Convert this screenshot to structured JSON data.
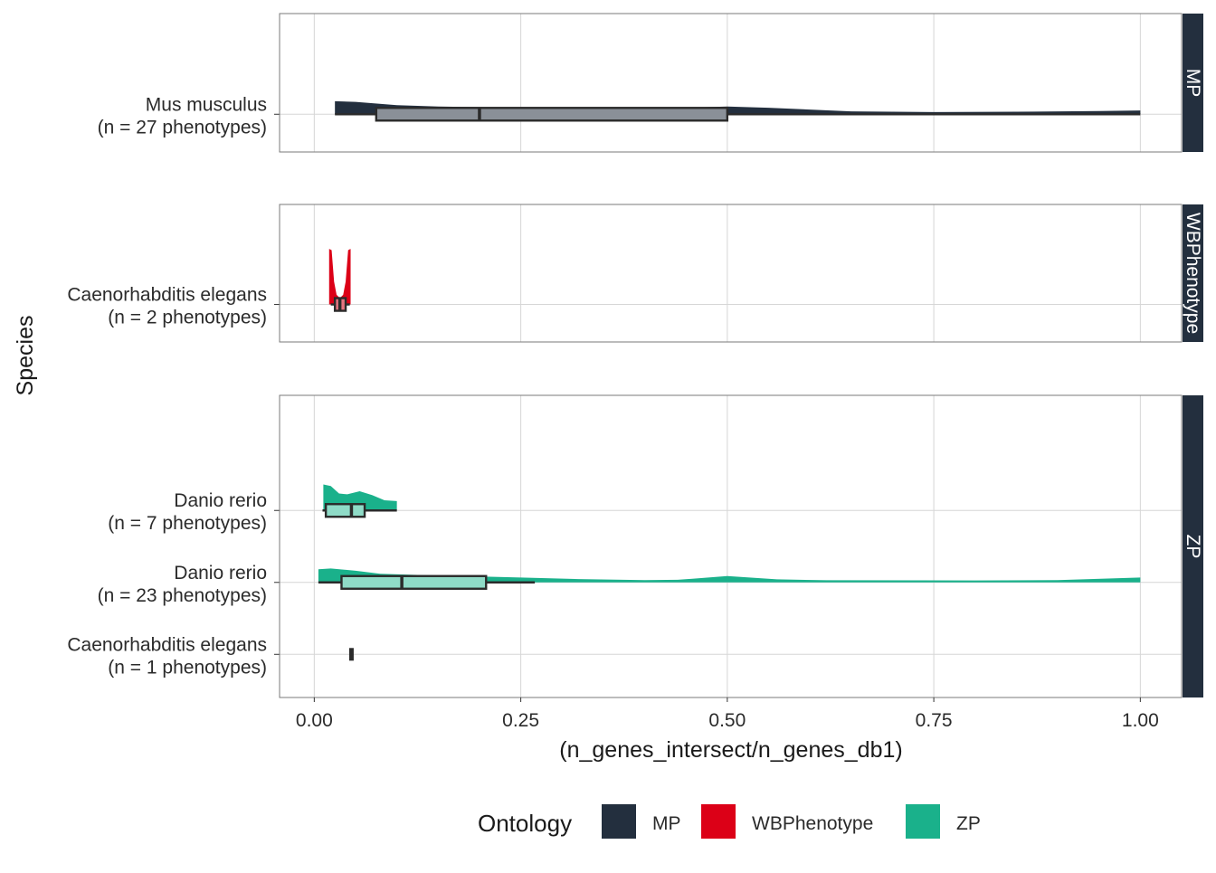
{
  "chart_data": {
    "type": "boxplot",
    "xlabel": "(n_genes_intersect/n_genes_db1)",
    "ylabel": "Species",
    "xlim": [
      -0.042,
      1.05
    ],
    "x_ticks": [
      0.0,
      0.25,
      0.5,
      0.75,
      1.0
    ],
    "x_tick_labels": [
      "0.00",
      "0.25",
      "0.50",
      "0.75",
      "1.00"
    ],
    "grid": true,
    "legend": {
      "title": "Ontology",
      "placement": "bottom",
      "entries": [
        {
          "label": "MP",
          "color": "#232F3E"
        },
        {
          "label": "WBPhenotype",
          "color": "#DC0017"
        },
        {
          "label": "ZP",
          "color": "#1AB18B"
        }
      ]
    },
    "facets": [
      {
        "strip": "MP",
        "color": "#232F3E",
        "box_fill": "#8A9098",
        "rows": [
          {
            "label_line1": "Mus musculus",
            "label_line2": "(n = 27 phenotypes)",
            "whisker_low": 0.025,
            "q1": 0.075,
            "median": 0.2,
            "q3": 0.5,
            "whisker_high": 1.0,
            "density": [
              [
                0.025,
                0.85
              ],
              [
                0.05,
                0.8
              ],
              [
                0.1,
                0.55
              ],
              [
                0.15,
                0.45
              ],
              [
                0.25,
                0.35
              ],
              [
                0.35,
                0.3
              ],
              [
                0.45,
                0.35
              ],
              [
                0.5,
                0.45
              ],
              [
                0.55,
                0.35
              ],
              [
                0.65,
                0.08
              ],
              [
                0.75,
                0.03
              ],
              [
                0.85,
                0.05
              ],
              [
                0.95,
                0.1
              ],
              [
                1.0,
                0.15
              ]
            ]
          }
        ]
      },
      {
        "strip": "WBPhenotype",
        "color": "#DC0017",
        "box_fill": "#E57480",
        "rows": [
          {
            "label_line1": "Caenorhabditis elegans",
            "label_line2": "(n = 2 phenotypes)",
            "whisker_low": 0.02,
            "q1": 0.025,
            "median": 0.031,
            "q3": 0.038,
            "whisker_high": 0.043,
            "density": [
              [
                0.018,
                10.0
              ],
              [
                0.021,
                4.0
              ],
              [
                0.024,
                1.6
              ],
              [
                0.027,
                0.6
              ],
              [
                0.031,
                0.35
              ],
              [
                0.035,
                0.6
              ],
              [
                0.038,
                1.6
              ],
              [
                0.041,
                4.0
              ],
              [
                0.044,
                10.0
              ]
            ]
          }
        ]
      },
      {
        "strip": "ZP",
        "color": "#1AB18B",
        "box_fill": "#8FDBC7",
        "rows": [
          {
            "label_line1": "Danio rerio",
            "label_line2": "(n = 7 phenotypes)",
            "whisker_low": 0.01,
            "q1": 0.014,
            "median": 0.045,
            "q3": 0.061,
            "whisker_high": 0.1,
            "density": [
              [
                0.011,
                1.6
              ],
              [
                0.02,
                1.5
              ],
              [
                0.03,
                1.0
              ],
              [
                0.04,
                0.95
              ],
              [
                0.055,
                1.15
              ],
              [
                0.07,
                0.9
              ],
              [
                0.085,
                0.55
              ],
              [
                0.1,
                0.5
              ]
            ]
          },
          {
            "label_line1": "Danio rerio",
            "label_line2": "(n = 23 phenotypes)",
            "whisker_low": 0.005,
            "q1": 0.033,
            "median": 0.106,
            "q3": 0.208,
            "whisker_high": 0.267,
            "density": [
              [
                0.005,
                0.75
              ],
              [
                0.02,
                0.8
              ],
              [
                0.05,
                0.65
              ],
              [
                0.08,
                0.45
              ],
              [
                0.12,
                0.38
              ],
              [
                0.18,
                0.3
              ],
              [
                0.25,
                0.2
              ],
              [
                0.32,
                0.1
              ],
              [
                0.4,
                0.03
              ],
              [
                0.44,
                0.05
              ],
              [
                0.5,
                0.3
              ],
              [
                0.56,
                0.08
              ],
              [
                0.62,
                0.02
              ],
              [
                0.8,
                0.01
              ],
              [
                0.9,
                0.03
              ],
              [
                1.0,
                0.2
              ]
            ]
          },
          {
            "label_line1": "Caenorhabditis elegans",
            "label_line2": "(n = 1 phenotypes)",
            "whisker_low": 0.045,
            "q1": 0.045,
            "median": 0.045,
            "q3": 0.045,
            "whisker_high": 0.045,
            "density": []
          }
        ]
      }
    ]
  }
}
